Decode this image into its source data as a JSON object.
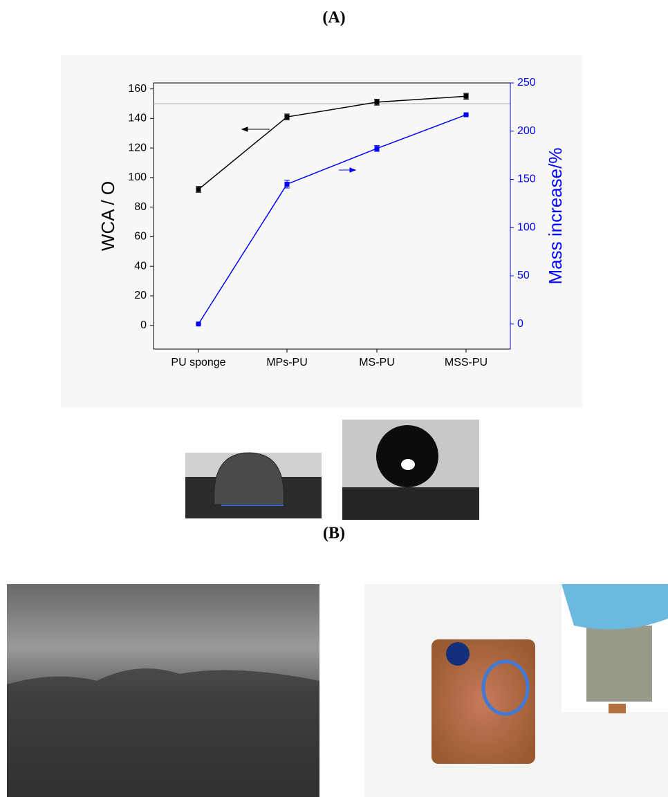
{
  "panel_a_label": "(A)",
  "panel_b_label": "(B)",
  "chart_data": {
    "type": "line",
    "categories": [
      "PU sponge",
      "MPs-PU",
      "MS-PU",
      "MSS-PU"
    ],
    "series": [
      {
        "name": "WCA",
        "color": "#000000",
        "values": [
          92,
          141,
          151,
          155
        ],
        "errors": [
          2,
          2,
          2,
          2
        ]
      },
      {
        "name": "Mass increase",
        "color": "#0000ff",
        "axis": "y2",
        "values": [
          0,
          145,
          182,
          217
        ],
        "errors": [
          0,
          4,
          3,
          0
        ]
      }
    ],
    "y_label": "WCA / O",
    "y2_label": "Mass increase/%",
    "ylim": [
      -16,
      164
    ],
    "yticks": [
      0,
      20,
      40,
      60,
      80,
      100,
      120,
      140,
      160
    ],
    "y2lim": [
      -26,
      250
    ],
    "y2ticks": [
      0,
      50,
      100,
      150,
      200,
      250
    ],
    "hline": 150
  }
}
